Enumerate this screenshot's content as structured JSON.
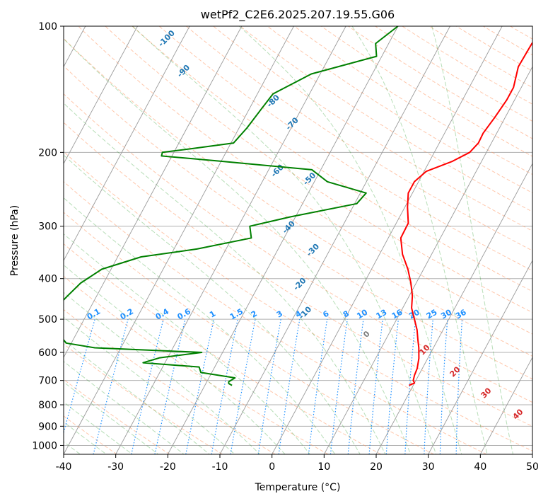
{
  "chart_data": {
    "type": "line",
    "subtype": "skew-t log-p diagram",
    "title": "wetPf2_C2E6.2025.207.19.55.G06",
    "xlabel": "Temperature (°C)",
    "ylabel": "Pressure (hPa)",
    "xlim": [
      -40,
      50
    ],
    "ylim_hpa": [
      1050,
      100
    ],
    "y_scale": "log",
    "x_ticks": [
      -40,
      -30,
      -20,
      -10,
      0,
      10,
      20,
      30,
      40,
      50
    ],
    "y_ticks": [
      100,
      200,
      300,
      400,
      500,
      600,
      700,
      800,
      900,
      1000
    ],
    "grid": true,
    "isotherm_step_c": 10,
    "dry_adiabat_labels": [
      -100,
      -90,
      -80,
      -70,
      -60,
      -50,
      -40,
      -30,
      -20,
      -10,
      0
    ],
    "mixing_ratio_labels": [
      "0.1",
      "0.2",
      "0.4",
      "0.6",
      "1",
      "1.5",
      "2",
      "3",
      "4",
      "6",
      "8",
      "10",
      "13",
      "16",
      "20",
      "25",
      "30",
      "36"
    ],
    "wet_bulb_labels": [
      10,
      20,
      30,
      40
    ],
    "series": [
      {
        "color": "#ff0000",
        "points": [
          [
            719,
            19.2
          ],
          [
            710,
            20.0
          ],
          [
            700,
            19.5
          ],
          [
            680,
            19.2
          ],
          [
            655,
            19.0
          ],
          [
            620,
            18.3
          ],
          [
            585,
            17.2
          ],
          [
            560,
            16.2
          ],
          [
            530,
            15.0
          ],
          [
            500,
            13.4
          ],
          [
            470,
            11.7
          ],
          [
            440,
            10.6
          ],
          [
            410,
            9.0
          ],
          [
            380,
            7.0
          ],
          [
            350,
            4.4
          ],
          [
            320,
            2.4
          ],
          [
            295,
            2.3
          ],
          [
            270,
            0.5
          ],
          [
            250,
            -0.8
          ],
          [
            235,
            -0.8
          ],
          [
            222,
            0.4
          ],
          [
            210,
            4.4
          ],
          [
            200,
            6.8
          ],
          [
            190,
            7.5
          ],
          [
            180,
            7.4
          ],
          [
            165,
            8.0
          ],
          [
            150,
            8.5
          ],
          [
            140,
            8.5
          ],
          [
            125,
            7.3
          ],
          [
            110,
            7.5
          ],
          [
            100,
            8.3
          ]
        ]
      },
      {
        "color": "#008000",
        "points": [
          [
            719,
            -14.8
          ],
          [
            712,
            -15.6
          ],
          [
            705,
            -15.8
          ],
          [
            690,
            -15.0
          ],
          [
            670,
            -22.1
          ],
          [
            650,
            -23.0
          ],
          [
            635,
            -34.2
          ],
          [
            618,
            -31.5
          ],
          [
            600,
            -24.0
          ],
          [
            585,
            -45.0
          ],
          [
            570,
            -51.0
          ],
          [
            490,
            -58.0
          ],
          [
            470,
            -56.6
          ],
          [
            440,
            -55.6
          ],
          [
            410,
            -54.4
          ],
          [
            380,
            -51.8
          ],
          [
            355,
            -45.5
          ],
          [
            340,
            -35.6
          ],
          [
            320,
            -26.3
          ],
          [
            300,
            -27.8
          ],
          [
            285,
            -21.0
          ],
          [
            265,
            -9.6
          ],
          [
            250,
            -8.9
          ],
          [
            235,
            -17.5
          ],
          [
            220,
            -21.7
          ],
          [
            210,
            -40.0
          ],
          [
            204,
            -52.0
          ],
          [
            200,
            -52.2
          ],
          [
            196,
            -47.0
          ],
          [
            190,
            -39.5
          ],
          [
            175,
            -38.5
          ],
          [
            158,
            -37.7
          ],
          [
            145,
            -37.0
          ],
          [
            130,
            -31.7
          ],
          [
            118,
            -21.0
          ],
          [
            110,
            -22.5
          ],
          [
            100,
            -20.0
          ]
        ]
      }
    ]
  }
}
